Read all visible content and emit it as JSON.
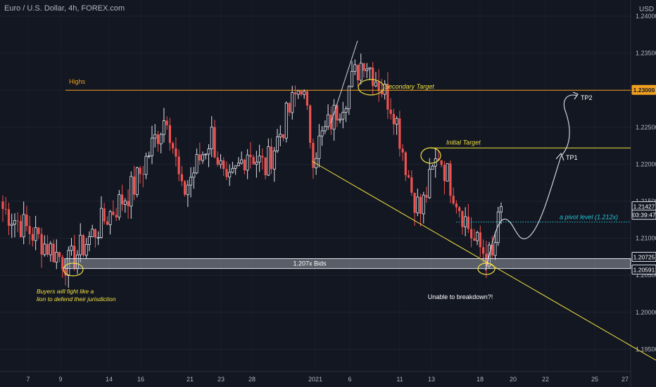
{
  "header": {
    "title": "Euro / U.S. Dollar, 4h, FOREX.com",
    "currency": "USD"
  },
  "colors": {
    "bg": "#131722",
    "up": "#e0e3eb",
    "down": "#ef5350",
    "gold": "#f0e040",
    "orange": "#f2a01f",
    "cyan": "#26c6da",
    "band": "#b2b5be"
  },
  "y_axis": {
    "ticks": [
      "1.24000",
      "1.23500",
      "1.23000",
      "1.22500",
      "1.22000",
      "1.21500",
      "1.21000",
      "1.20500",
      "1.20000",
      "1.19500"
    ],
    "tick_values": [
      1.24,
      1.235,
      1.23,
      1.225,
      1.22,
      1.215,
      1.21,
      1.205,
      1.2,
      1.195
    ],
    "badges": [
      {
        "label": "1.23000",
        "value": 1.23,
        "style": "orange"
      },
      {
        "label": "1.21427",
        "value": 1.21427,
        "style": "white"
      },
      {
        "label": "03:39:47",
        "value": 1.2128,
        "style": "white"
      },
      {
        "label": "1.20725",
        "value": 1.20725,
        "style": "white"
      },
      {
        "label": "1.20591",
        "value": 1.20591,
        "style": "white"
      }
    ]
  },
  "x_axis": {
    "ticks": [
      "7",
      "9",
      "14",
      "16",
      "21",
      "23",
      "28",
      "2021",
      "6",
      "11",
      "13",
      "18",
      "20",
      "22",
      "25",
      "27"
    ]
  },
  "annotations": {
    "highs": "Highs",
    "secondary_target": "Secondary Target",
    "initial_target": "Initial Target",
    "pivot": "a pivot level (1.212x)",
    "bids": "1.207x Bids",
    "buyers_1": "Buyers will fight like a",
    "buyers_2": "lion to defend their jurisdiction",
    "unable": "Unable to breakdown?!",
    "tp1": "TP1",
    "tp2": "TP2"
  },
  "chart_data": {
    "type": "candlestick",
    "title": "Euro / U.S. Dollar, 4h, FOREX.com",
    "instrument": "EUR/USD",
    "timeframe": "4h",
    "ylim": [
      1.1935,
      1.2415
    ],
    "x_tick_labels": [
      "7",
      "9",
      "14",
      "16",
      "21",
      "23",
      "28",
      "2021",
      "6",
      "11",
      "13",
      "18",
      "20",
      "22",
      "25",
      "27"
    ],
    "price_path": [
      {
        "t": "start",
        "price": 1.214
      },
      {
        "t": "9",
        "price": 1.2065
      },
      {
        "t": "14",
        "price": 1.2125
      },
      {
        "t": "16",
        "price": 1.217
      },
      {
        "t": "21",
        "price": 1.227
      },
      {
        "t": "21-22",
        "price": 1.2158
      },
      {
        "t": "23",
        "price": 1.224
      },
      {
        "t": "24",
        "price": 1.2163
      },
      {
        "t": "26",
        "price": 1.222
      },
      {
        "t": "28",
        "price": 1.2195
      },
      {
        "t": "31",
        "price": 1.231
      },
      {
        "t": "2021",
        "price": 1.2215
      },
      {
        "t": "5",
        "price": 1.2295
      },
      {
        "t": "6",
        "price": 1.2345
      },
      {
        "t": "8",
        "price": 1.2275
      },
      {
        "t": "11",
        "price": 1.2165
      },
      {
        "t": "12",
        "price": 1.2135
      },
      {
        "t": "13",
        "price": 1.2215
      },
      {
        "t": "15",
        "price": 1.2155
      },
      {
        "t": "17",
        "price": 1.2095
      },
      {
        "t": "18",
        "price": 1.207
      },
      {
        "t": "19",
        "price": 1.21427
      }
    ],
    "levels": [
      {
        "name": "Highs",
        "value": 1.23
      },
      {
        "name": "Initial Target",
        "value": 1.2222
      },
      {
        "name": "a pivot level (1.212x)",
        "value": 1.2122
      },
      {
        "name": "1.207x Bids",
        "low": 1.20591,
        "high": 1.20725
      }
    ],
    "last_price": 1.21427,
    "countdown": "03:39:47"
  }
}
